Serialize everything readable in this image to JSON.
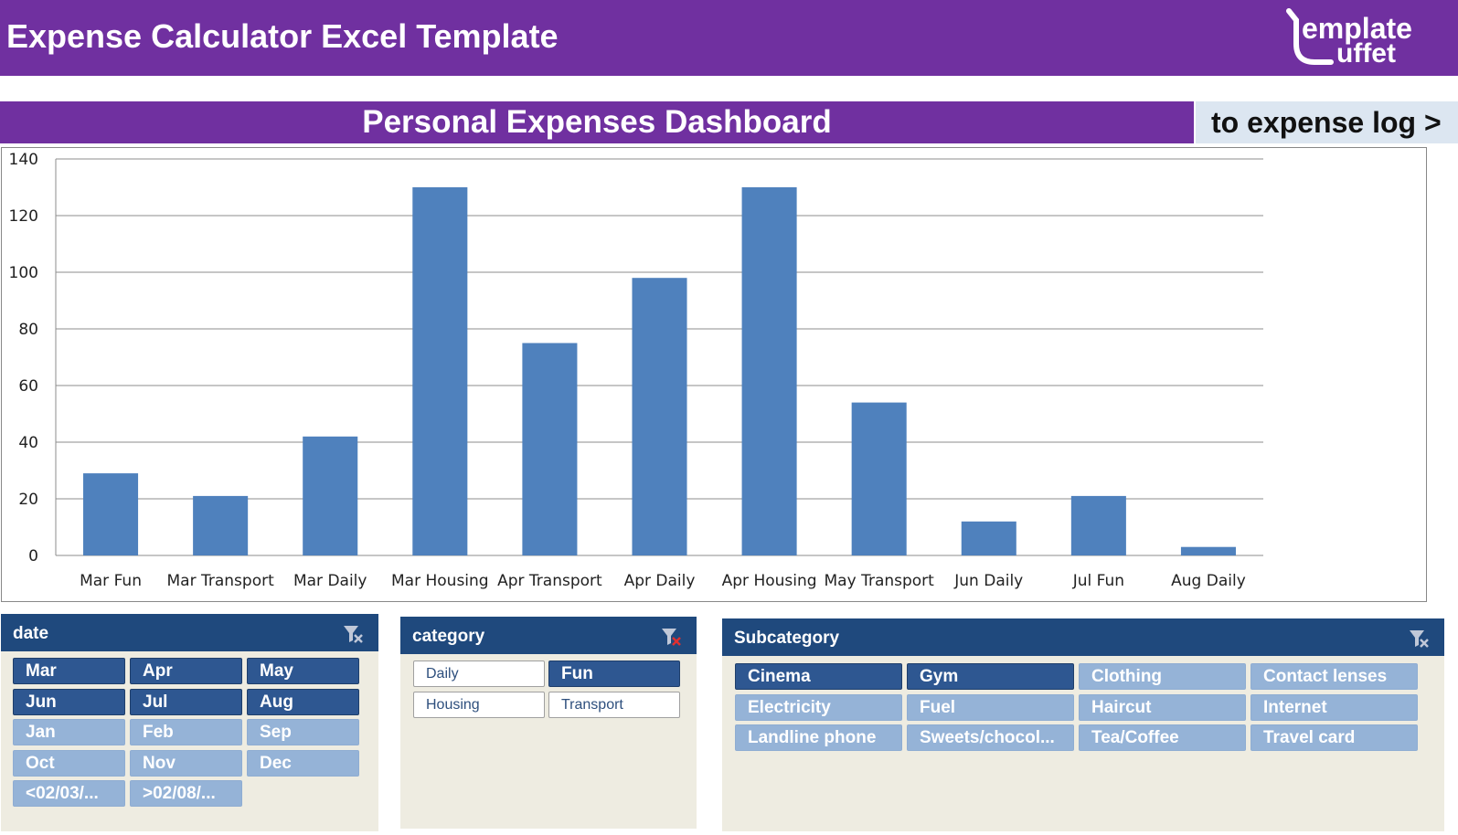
{
  "header": {
    "title": "Expense Calculator Excel Template",
    "logo_text_top": "emplate",
    "logo_text_bottom": "uffet"
  },
  "dashboard": {
    "title": "Personal Expenses Dashboard",
    "nav_link": "to expense log >"
  },
  "colors": {
    "brand": "#7030a0",
    "bar": "#4f81bd",
    "slicer_header": "#1f497d",
    "selected": "#2e5791",
    "unselected": "#95b3d7"
  },
  "chart_data": {
    "type": "bar",
    "categories": [
      "Mar Fun",
      "Mar Transport",
      "Mar Daily",
      "Mar Housing",
      "Apr Transport",
      "Apr Daily",
      "Apr Housing",
      "May Transport",
      "Jun Daily",
      "Jul Fun",
      "Aug Daily"
    ],
    "values": [
      29,
      21,
      42,
      130,
      75,
      98,
      130,
      54,
      12,
      21,
      3
    ],
    "ylim": [
      0,
      140
    ],
    "yticks": [
      0,
      20,
      40,
      60,
      80,
      100,
      120,
      140
    ],
    "grid": true,
    "legend": "none"
  },
  "slicers": {
    "date": {
      "title": "date",
      "clear_icon": "clear-filter-icon",
      "items": [
        {
          "label": "Mar",
          "selected": true
        },
        {
          "label": "Apr",
          "selected": true
        },
        {
          "label": "May",
          "selected": true
        },
        {
          "label": "Jun",
          "selected": true
        },
        {
          "label": "Jul",
          "selected": true
        },
        {
          "label": "Aug",
          "selected": true
        },
        {
          "label": "Jan",
          "selected": false
        },
        {
          "label": "Feb",
          "selected": false
        },
        {
          "label": "Sep",
          "selected": false
        },
        {
          "label": "Oct",
          "selected": false
        },
        {
          "label": "Nov",
          "selected": false
        },
        {
          "label": "Dec",
          "selected": false
        },
        {
          "label": "<02/03/...",
          "selected": false
        },
        {
          "label": ">02/08/...",
          "selected": false
        }
      ]
    },
    "category": {
      "title": "category",
      "clear_icon": "clear-filter-icon",
      "items": [
        {
          "label": "Daily",
          "selected": false
        },
        {
          "label": "Fun",
          "selected": true
        },
        {
          "label": "Housing",
          "selected": false
        },
        {
          "label": "Transport",
          "selected": false
        }
      ]
    },
    "subcategory": {
      "title": "Subcategory",
      "clear_icon": "clear-filter-icon",
      "items": [
        {
          "label": "Cinema",
          "selected": true
        },
        {
          "label": "Gym",
          "selected": true
        },
        {
          "label": "Clothing",
          "selected": false
        },
        {
          "label": "Contact lenses",
          "selected": false
        },
        {
          "label": "Electricity",
          "selected": false
        },
        {
          "label": "Fuel",
          "selected": false
        },
        {
          "label": "Haircut",
          "selected": false
        },
        {
          "label": "Internet",
          "selected": false
        },
        {
          "label": "Landline phone",
          "selected": false
        },
        {
          "label": "Sweets/chocol...",
          "selected": false
        },
        {
          "label": "Tea/Coffee",
          "selected": false
        },
        {
          "label": "Travel card",
          "selected": false
        }
      ]
    }
  }
}
